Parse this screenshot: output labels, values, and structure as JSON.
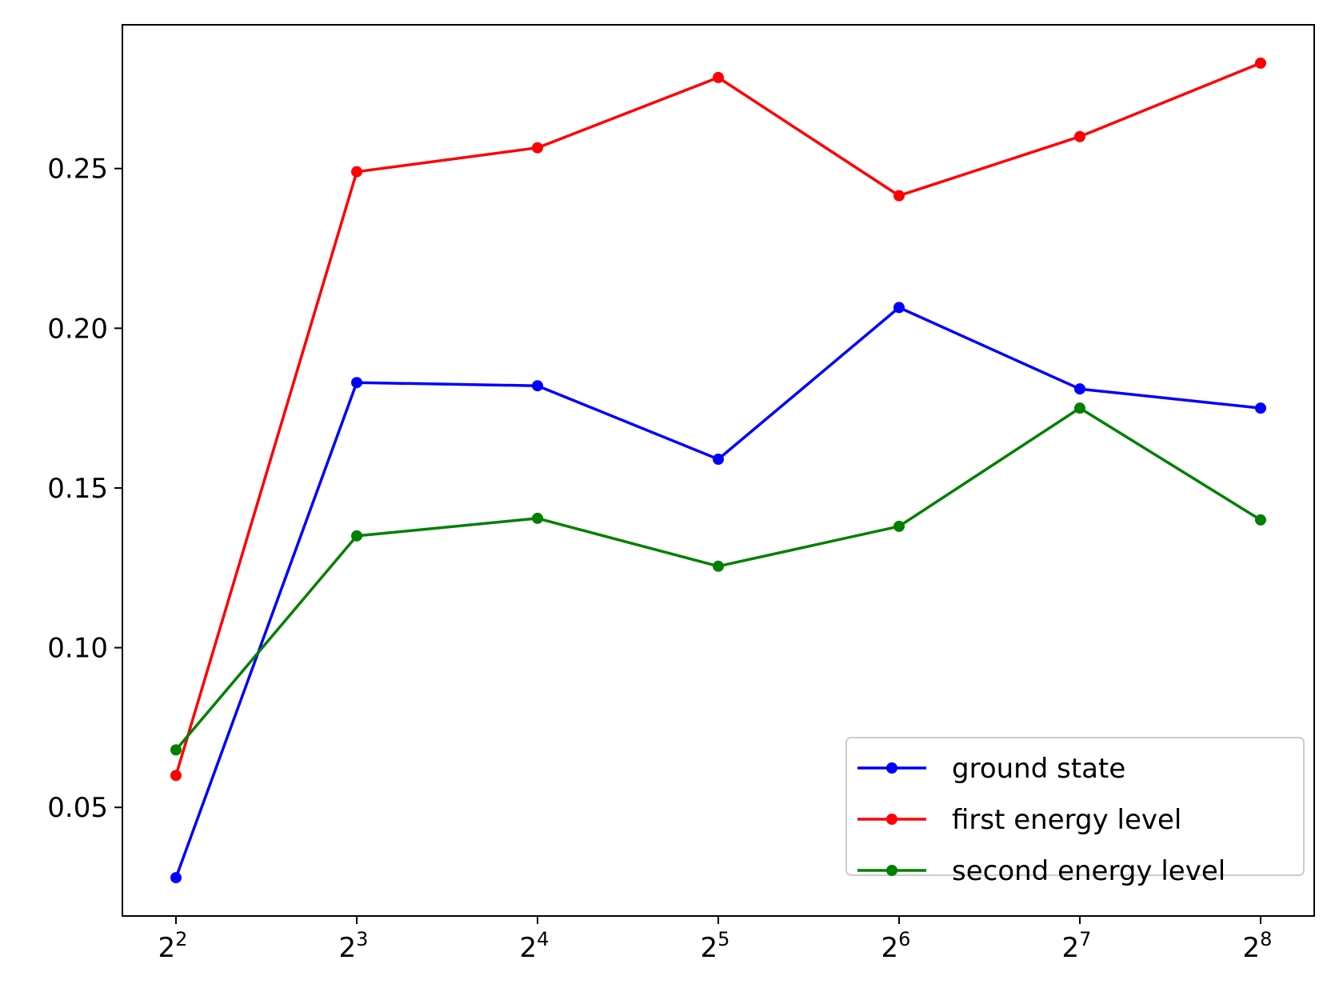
{
  "chart_data": {
    "type": "line",
    "title": "",
    "xlabel": "",
    "ylabel": "",
    "x_scale": "log2",
    "x": [
      4,
      8,
      16,
      32,
      64,
      128,
      256
    ],
    "x_ticks": [
      {
        "base": "2",
        "exp": "2"
      },
      {
        "base": "2",
        "exp": "3"
      },
      {
        "base": "2",
        "exp": "4"
      },
      {
        "base": "2",
        "exp": "5"
      },
      {
        "base": "2",
        "exp": "6"
      },
      {
        "base": "2",
        "exp": "7"
      },
      {
        "base": "2",
        "exp": "8"
      }
    ],
    "ylim": [
      0.016,
      0.295
    ],
    "y_ticks": [
      "0.05",
      "0.10",
      "0.15",
      "0.20",
      "0.25"
    ],
    "grid": false,
    "legend_position": "lower-right",
    "series": [
      {
        "name": "ground state",
        "color": "#0000ff",
        "marker": "circle",
        "values": [
          0.028,
          0.183,
          0.182,
          0.159,
          0.2065,
          0.181,
          0.175
        ]
      },
      {
        "name": "first energy level",
        "color": "#ff0000",
        "marker": "circle",
        "values": [
          0.06,
          0.249,
          0.2565,
          0.2785,
          0.2415,
          0.26,
          0.283
        ]
      },
      {
        "name": "second energy level",
        "color": "#008000",
        "marker": "circle",
        "values": [
          0.068,
          0.135,
          0.1405,
          0.1255,
          0.138,
          0.175,
          0.14
        ]
      }
    ]
  }
}
